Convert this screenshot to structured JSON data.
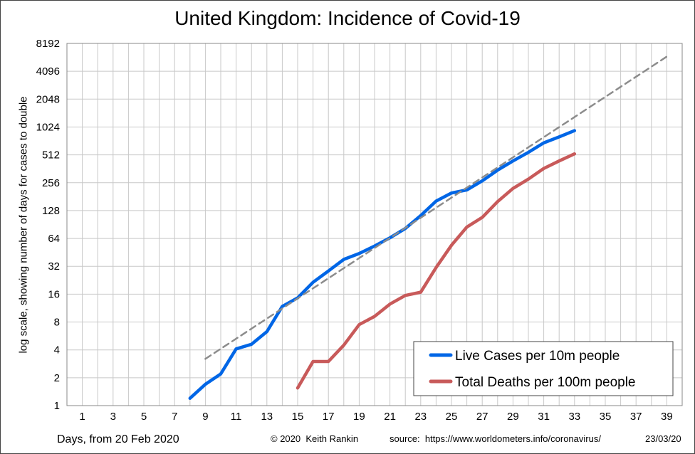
{
  "chart_data": {
    "type": "line",
    "title": "United Kingdom: Incidence of Covid-19",
    "ylabel": "log scale, showing number of days for cases to double",
    "xlabel": "Days, from 20 Feb 2020",
    "y_scale": "log2",
    "ylim": [
      1,
      8192
    ],
    "xlim": [
      0,
      40
    ],
    "y_ticks": [
      1,
      2,
      4,
      8,
      16,
      32,
      64,
      128,
      256,
      512,
      1024,
      2048,
      4096,
      8192
    ],
    "x_tick_labels": [
      1,
      3,
      5,
      7,
      9,
      11,
      13,
      15,
      17,
      19,
      21,
      23,
      25,
      27,
      29,
      31,
      33,
      35,
      37,
      39
    ],
    "grid": true,
    "legend_position": "bottom-right",
    "series": [
      {
        "name": "Live Cases per 10m people",
        "color": "#0066e6",
        "style": "solid",
        "x": [
          8,
          9,
          10,
          11,
          12,
          13,
          14,
          15,
          16,
          17,
          18,
          19,
          20,
          21,
          22,
          23,
          24,
          25,
          26,
          27,
          28,
          29,
          30,
          31,
          32,
          33
        ],
        "y": [
          1.2,
          1.7,
          2.2,
          4.1,
          4.6,
          6.3,
          11.8,
          14.6,
          21.5,
          28.5,
          38,
          44,
          53,
          65,
          82,
          113,
          162,
          198,
          214,
          268,
          350,
          440,
          545,
          690,
          800,
          935
        ]
      },
      {
        "name": "Total Deaths per 100m people",
        "color": "#c85a5a",
        "style": "solid",
        "x": [
          15,
          16,
          17,
          18,
          19,
          20,
          21,
          22,
          23,
          24,
          25,
          26,
          27,
          28,
          29,
          30,
          31,
          32,
          33
        ],
        "y": [
          1.55,
          3.0,
          3.0,
          4.5,
          7.5,
          9.2,
          12.5,
          15.5,
          16.8,
          31,
          54,
          85,
          108,
          160,
          222,
          280,
          365,
          440,
          525
        ]
      },
      {
        "color": "#8c8c8c",
        "style": "dashed",
        "x": [
          9,
          39
        ],
        "y": [
          3.2,
          5900
        ]
      }
    ]
  },
  "footer": {
    "xlabel": "Days, from 20 Feb 2020",
    "credit": "© 2020  Keith Rankin",
    "source": "source:  https://www.worldometers.info/coronavirus/",
    "date": "23/03/20"
  }
}
